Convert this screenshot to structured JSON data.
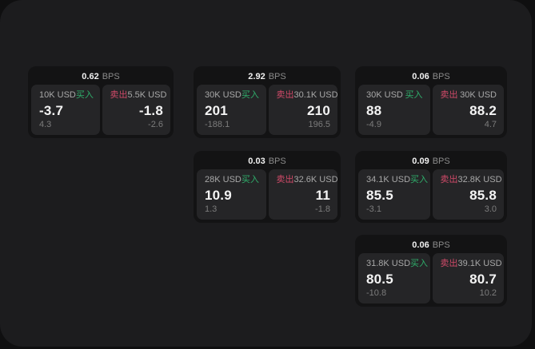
{
  "labels": {
    "bps_unit": "BPS",
    "buy": "买入",
    "sell": "卖出"
  },
  "colors": {
    "page_bg": "#0f0f10",
    "container_bg": "#1c1c1e",
    "card_bg": "#131314",
    "panel_bg": "#252527",
    "value_text": "#f4f4f4",
    "size_label_text": "#a8a8a8",
    "sub_value_text": "#7c7c7c",
    "bps_unit_text": "#8b8b8b",
    "buy_green": "#2fae6b",
    "sell_red": "#d04a68"
  },
  "cards": [
    {
      "bps": "0.62",
      "buy": {
        "size": "10K USD",
        "value": "-3.7",
        "sub": "4.3"
      },
      "sell": {
        "size": "5.5K USD",
        "value": "-1.8",
        "sub": "-2.6"
      }
    },
    {
      "bps": "2.92",
      "buy": {
        "size": "30K USD",
        "value": "201",
        "sub": "-188.1"
      },
      "sell": {
        "size": "30.1K USD",
        "value": "210",
        "sub": "196.5"
      }
    },
    {
      "bps": "0.06",
      "buy": {
        "size": "30K USD",
        "value": "88",
        "sub": "-4.9"
      },
      "sell": {
        "size": "30K USD",
        "value": "88.2",
        "sub": "4.7"
      }
    },
    {
      "bps": "0.03",
      "buy": {
        "size": "28K USD",
        "value": "10.9",
        "sub": "1.3"
      },
      "sell": {
        "size": "32.6K USD",
        "value": "11",
        "sub": "-1.8"
      }
    },
    {
      "bps": "0.09",
      "buy": {
        "size": "34.1K USD",
        "value": "85.5",
        "sub": "-3.1"
      },
      "sell": {
        "size": "32.8K USD",
        "value": "85.8",
        "sub": "3.0"
      }
    },
    {
      "bps": "0.06",
      "buy": {
        "size": "31.8K USD",
        "value": "80.5",
        "sub": "-10.8"
      },
      "sell": {
        "size": "39.1K USD",
        "value": "80.7",
        "sub": "10.2"
      }
    }
  ]
}
